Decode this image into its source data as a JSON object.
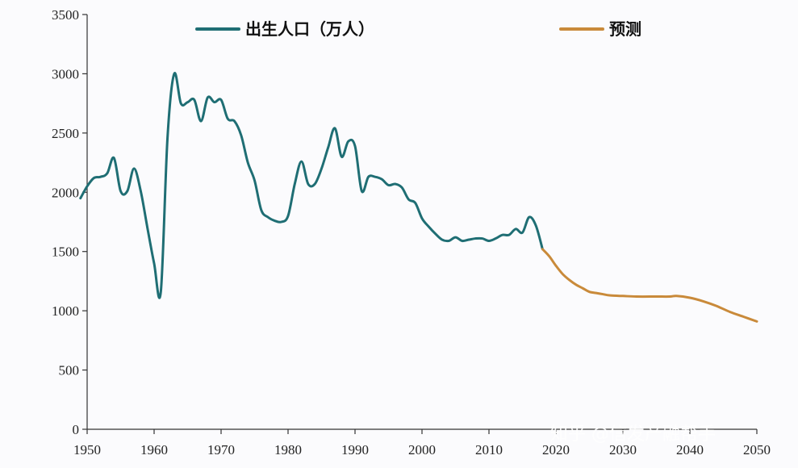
{
  "chart_data": {
    "type": "line",
    "title": "",
    "xlabel": "",
    "ylabel": "",
    "xlim": [
      1950,
      2050
    ],
    "ylim": [
      0,
      3500
    ],
    "x_ticks": [
      1950,
      1960,
      1970,
      1980,
      1990,
      2000,
      2010,
      2020,
      2030,
      2040,
      2050
    ],
    "y_ticks": [
      0,
      500,
      1000,
      1500,
      2000,
      2500,
      3000,
      3500
    ],
    "grid": false,
    "legend_position": "top",
    "series": [
      {
        "name": "出生人口（万人）",
        "color": "#1f6e74",
        "points": [
          [
            1949,
            1950
          ],
          [
            1950,
            2050
          ],
          [
            1951,
            2120
          ],
          [
            1952,
            2130
          ],
          [
            1953,
            2160
          ],
          [
            1954,
            2290
          ],
          [
            1955,
            2010
          ],
          [
            1956,
            2010
          ],
          [
            1957,
            2200
          ],
          [
            1958,
            2010
          ],
          [
            1959,
            1700
          ],
          [
            1960,
            1400
          ],
          [
            1961,
            1160
          ],
          [
            1962,
            2460
          ],
          [
            1963,
            3000
          ],
          [
            1964,
            2750
          ],
          [
            1965,
            2760
          ],
          [
            1966,
            2780
          ],
          [
            1967,
            2600
          ],
          [
            1968,
            2800
          ],
          [
            1969,
            2760
          ],
          [
            1970,
            2780
          ],
          [
            1971,
            2620
          ],
          [
            1972,
            2600
          ],
          [
            1973,
            2480
          ],
          [
            1974,
            2250
          ],
          [
            1975,
            2100
          ],
          [
            1976,
            1850
          ],
          [
            1977,
            1790
          ],
          [
            1978,
            1760
          ],
          [
            1979,
            1750
          ],
          [
            1980,
            1800
          ],
          [
            1981,
            2070
          ],
          [
            1982,
            2260
          ],
          [
            1983,
            2070
          ],
          [
            1984,
            2070
          ],
          [
            1985,
            2200
          ],
          [
            1986,
            2380
          ],
          [
            1987,
            2540
          ],
          [
            1988,
            2300
          ],
          [
            1989,
            2430
          ],
          [
            1990,
            2390
          ],
          [
            1991,
            2010
          ],
          [
            1992,
            2130
          ],
          [
            1993,
            2130
          ],
          [
            1994,
            2110
          ],
          [
            1995,
            2060
          ],
          [
            1996,
            2070
          ],
          [
            1997,
            2040
          ],
          [
            1998,
            1940
          ],
          [
            1999,
            1910
          ],
          [
            2000,
            1780
          ],
          [
            2001,
            1710
          ],
          [
            2002,
            1650
          ],
          [
            2003,
            1600
          ],
          [
            2004,
            1590
          ],
          [
            2005,
            1620
          ],
          [
            2006,
            1590
          ],
          [
            2007,
            1600
          ],
          [
            2008,
            1610
          ],
          [
            2009,
            1610
          ],
          [
            2010,
            1590
          ],
          [
            2011,
            1610
          ],
          [
            2012,
            1640
          ],
          [
            2013,
            1640
          ],
          [
            2014,
            1690
          ],
          [
            2015,
            1660
          ],
          [
            2016,
            1790
          ],
          [
            2017,
            1720
          ],
          [
            2018,
            1520
          ]
        ]
      },
      {
        "name": "预测",
        "color": "#c98a3a",
        "points": [
          [
            2018,
            1520
          ],
          [
            2019,
            1460
          ],
          [
            2020,
            1380
          ],
          [
            2021,
            1310
          ],
          [
            2022,
            1260
          ],
          [
            2023,
            1220
          ],
          [
            2024,
            1190
          ],
          [
            2025,
            1160
          ],
          [
            2026,
            1150
          ],
          [
            2027,
            1140
          ],
          [
            2028,
            1130
          ],
          [
            2030,
            1125
          ],
          [
            2032,
            1120
          ],
          [
            2035,
            1120
          ],
          [
            2037,
            1120
          ],
          [
            2038,
            1125
          ],
          [
            2040,
            1110
          ],
          [
            2042,
            1080
          ],
          [
            2044,
            1040
          ],
          [
            2046,
            990
          ],
          [
            2048,
            950
          ],
          [
            2050,
            910
          ]
        ]
      }
    ]
  },
  "legend": {
    "items": [
      {
        "label": "出生人口（万人）",
        "color": "#1f6e74"
      },
      {
        "label": "预测",
        "color": "#c98a3a"
      }
    ]
  },
  "watermark": {
    "text": "知乎 @信发产融帮手"
  }
}
